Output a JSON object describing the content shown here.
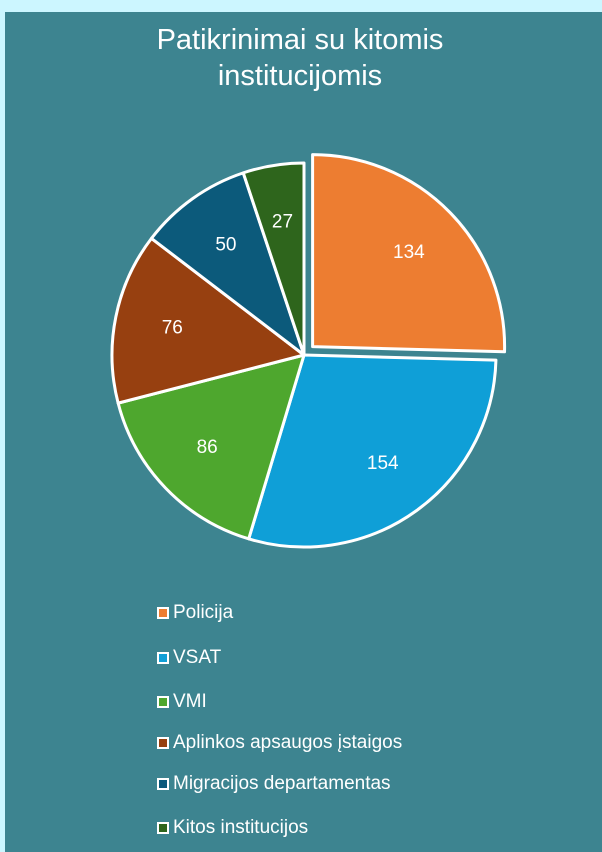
{
  "chart_data": {
    "type": "pie",
    "title": "Patikrinimai su kitomis institucijomis",
    "categories": [
      "Policija",
      "VSAT",
      "VMI",
      "Aplinkos apsaugos įstaigos",
      "Migracijos departamentas",
      "Kitos institucijos"
    ],
    "values": [
      134,
      154,
      86,
      76,
      50,
      27
    ],
    "colors": [
      "#ed7d31",
      "#0f9fd7",
      "#4ea72e",
      "#974010",
      "#0c5a7b",
      "#2e651c"
    ],
    "exploded": [
      0
    ],
    "legend": "bottom"
  }
}
